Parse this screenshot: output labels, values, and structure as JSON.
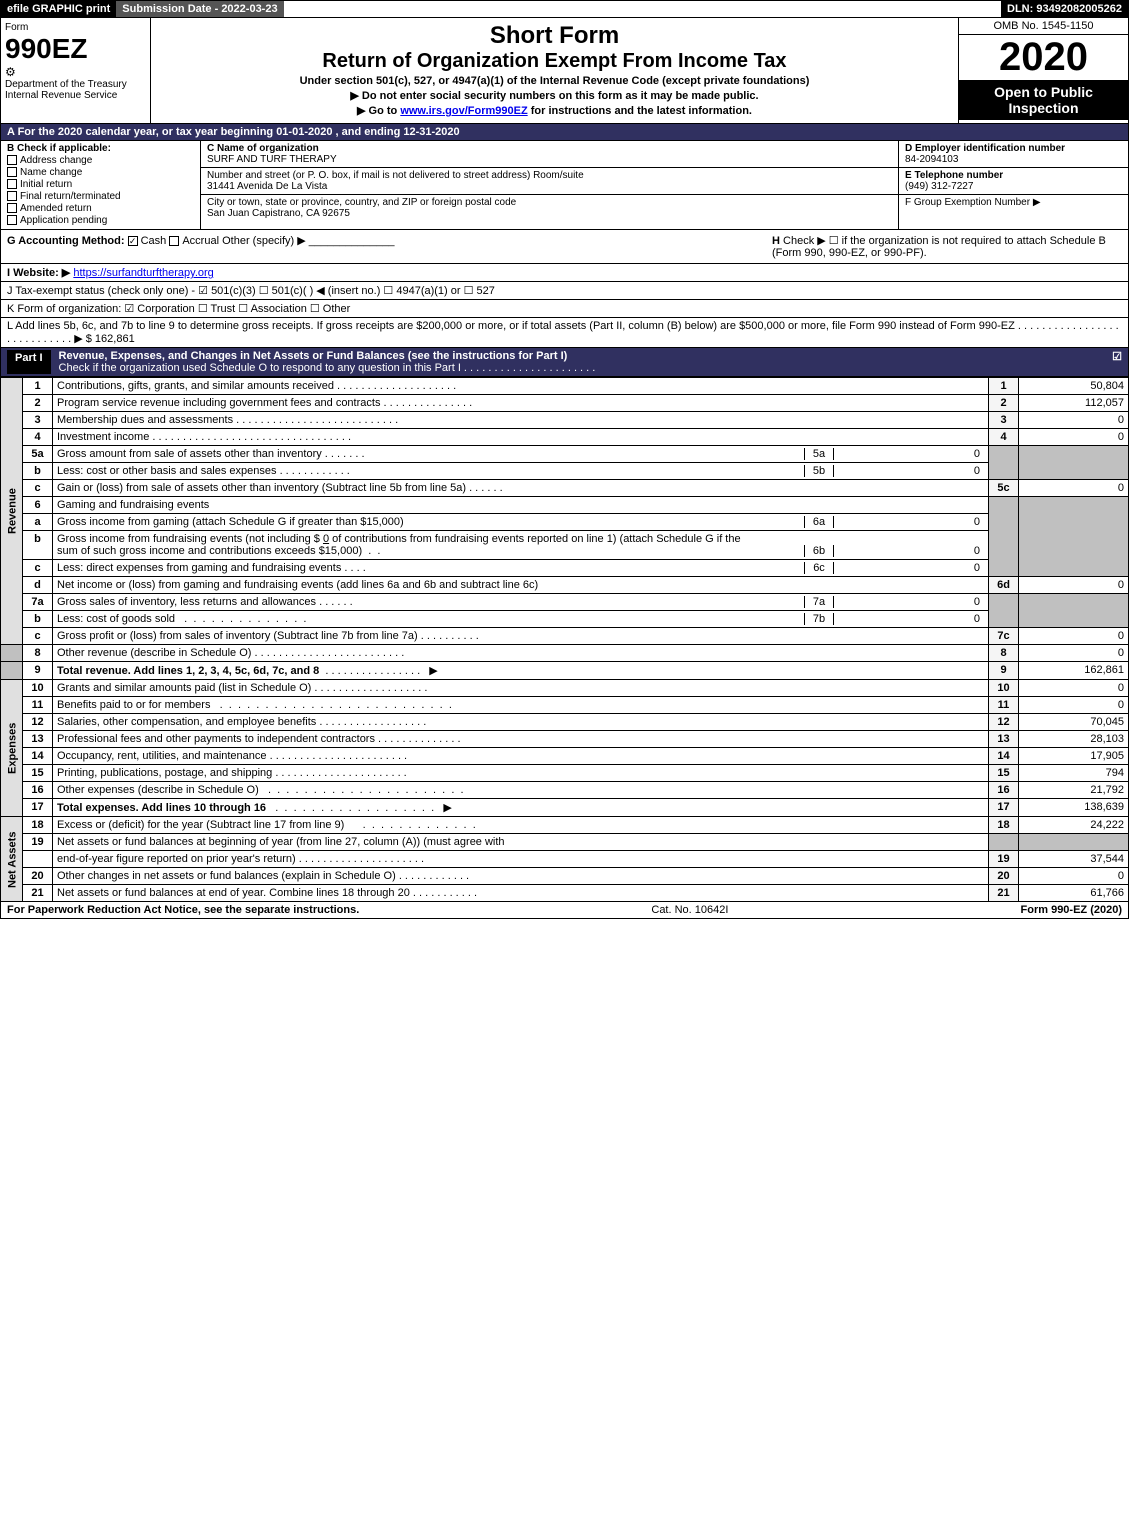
{
  "top": {
    "efile": "efile GRAPHIC print",
    "subdate": "Submission Date - 2022-03-23",
    "dln": "DLN: 93492082005262"
  },
  "header": {
    "form_label": "Form",
    "form_no": "990EZ",
    "irs": "Internal Revenue Service",
    "dept": "Department of the Treasury",
    "title": "Short Form",
    "subtitle": "Return of Organization Exempt From Income Tax",
    "sub1": "Under section 501(c), 527, or 4947(a)(1) of the Internal Revenue Code (except private foundations)",
    "sub2": "▶ Do not enter social security numbers on this form as it may be made public.",
    "sub3_pre": "▶ Go to ",
    "sub3_link": "www.irs.gov/Form990EZ",
    "sub3_post": " for instructions and the latest information.",
    "omb": "OMB No. 1545-1150",
    "year": "2020",
    "open": "Open to Public Inspection"
  },
  "section_a": "A For the 2020 calendar year, or tax year beginning 01-01-2020 , and ending 12-31-2020",
  "col_b": {
    "header": "B Check if applicable:",
    "items": [
      "Address change",
      "Name change",
      "Initial return",
      "Final return/terminated",
      "Amended return",
      "Application pending"
    ]
  },
  "col_c": {
    "name_label": "C Name of organization",
    "name": "SURF AND TURF THERAPY",
    "street_label": "Number and street (or P. O. box, if mail is not delivered to street address)    Room/suite",
    "street": "31441 Avenida De La Vista",
    "city_label": "City or town, state or province, country, and ZIP or foreign postal code",
    "city": "San Juan Capistrano, CA  92675"
  },
  "col_def": {
    "d_label": "D Employer identification number",
    "d_val": "84-2094103",
    "e_label": "E Telephone number",
    "e_val": "(949) 312-7227",
    "f_label": "F Group Exemption Number   ▶"
  },
  "row_g": {
    "label": "G Accounting Method:",
    "cash": "Cash",
    "accrual": "Accrual",
    "other": "Other (specify) ▶"
  },
  "row_h": {
    "label": "H",
    "text": "Check ▶  ☐  if the organization is not required to attach Schedule B (Form 990, 990-EZ, or 990-PF)."
  },
  "row_i": {
    "label": "I Website: ▶",
    "link": "https://surfandturftherapy.org"
  },
  "row_j": "J Tax-exempt status (check only one) - ☑ 501(c)(3) ☐ 501(c)(  ) ◀ (insert no.) ☐ 4947(a)(1) or ☐ 527",
  "row_k": "K Form of organization:  ☑ Corporation  ☐ Trust  ☐ Association  ☐ Other",
  "row_l": "L Add lines 5b, 6c, and 7b to line 9 to determine gross receipts. If gross receipts are $200,000 or more, or if total assets (Part II, column (B) below) are $500,000 or more, file Form 990 instead of Form 990-EZ . . . . . . . . . . . . . . . . . . . . . . . . . . . . ▶ $ 162,861",
  "part1": {
    "label": "Part I",
    "title": "Revenue, Expenses, and Changes in Net Assets or Fund Balances (see the instructions for Part I)",
    "sub": "Check if the organization used Schedule O to respond to any question in this Part I . . . . . . . . . . . . . . . . . . . . . .",
    "check": "☑"
  },
  "sides": {
    "rev": "Revenue",
    "exp": "Expenses",
    "na": "Net Assets"
  },
  "lines": {
    "l1": {
      "no": "1",
      "desc": "Contributions, gifts, grants, and similar amounts received",
      "box": "1",
      "amt": "50,804"
    },
    "l2": {
      "no": "2",
      "desc": "Program service revenue including government fees and contracts",
      "box": "2",
      "amt": "112,057"
    },
    "l3": {
      "no": "3",
      "desc": "Membership dues and assessments",
      "box": "3",
      "amt": "0"
    },
    "l4": {
      "no": "4",
      "desc": "Investment income",
      "box": "4",
      "amt": "0"
    },
    "l5a": {
      "no": "5a",
      "desc": "Gross amount from sale of assets other than inventory",
      "sl": "5a",
      "sv": "0"
    },
    "l5b": {
      "no": "b",
      "desc": "Less: cost or other basis and sales expenses",
      "sl": "5b",
      "sv": "0"
    },
    "l5c": {
      "no": "c",
      "desc": "Gain or (loss) from sale of assets other than inventory (Subtract line 5b from line 5a)",
      "box": "5c",
      "amt": "0"
    },
    "l6": {
      "no": "6",
      "desc": "Gaming and fundraising events"
    },
    "l6a": {
      "no": "a",
      "desc": "Gross income from gaming (attach Schedule G if greater than $15,000)",
      "sl": "6a",
      "sv": "0"
    },
    "l6b": {
      "no": "b",
      "desc1": "Gross income from fundraising events (not including $ ",
      "desc1v": "0",
      "desc1b": " of contributions from fundraising events reported on line 1) (attach Schedule G if the",
      "desc2": "sum of such gross income and contributions exceeds $15,000)",
      "sl": "6b",
      "sv": "0"
    },
    "l6c": {
      "no": "c",
      "desc": "Less: direct expenses from gaming and fundraising events",
      "sl": "6c",
      "sv": "0"
    },
    "l6d": {
      "no": "d",
      "desc": "Net income or (loss) from gaming and fundraising events (add lines 6a and 6b and subtract line 6c)",
      "box": "6d",
      "amt": "0"
    },
    "l7a": {
      "no": "7a",
      "desc": "Gross sales of inventory, less returns and allowances",
      "sl": "7a",
      "sv": "0"
    },
    "l7b": {
      "no": "b",
      "desc": "Less: cost of goods sold",
      "sl": "7b",
      "sv": "0"
    },
    "l7c": {
      "no": "c",
      "desc": "Gross profit or (loss) from sales of inventory (Subtract line 7b from line 7a)",
      "box": "7c",
      "amt": "0"
    },
    "l8": {
      "no": "8",
      "desc": "Other revenue (describe in Schedule O)",
      "box": "8",
      "amt": "0"
    },
    "l9": {
      "no": "9",
      "desc": "Total revenue. Add lines 1, 2, 3, 4, 5c, 6d, 7c, and 8",
      "arrow": "▶",
      "box": "9",
      "amt": "162,861"
    },
    "l10": {
      "no": "10",
      "desc": "Grants and similar amounts paid (list in Schedule O)",
      "box": "10",
      "amt": "0"
    },
    "l11": {
      "no": "11",
      "desc": "Benefits paid to or for members",
      "box": "11",
      "amt": "0"
    },
    "l12": {
      "no": "12",
      "desc": "Salaries, other compensation, and employee benefits",
      "box": "12",
      "amt": "70,045"
    },
    "l13": {
      "no": "13",
      "desc": "Professional fees and other payments to independent contractors",
      "box": "13",
      "amt": "28,103"
    },
    "l14": {
      "no": "14",
      "desc": "Occupancy, rent, utilities, and maintenance",
      "box": "14",
      "amt": "17,905"
    },
    "l15": {
      "no": "15",
      "desc": "Printing, publications, postage, and shipping",
      "box": "15",
      "amt": "794"
    },
    "l16": {
      "no": "16",
      "desc": "Other expenses (describe in Schedule O)",
      "box": "16",
      "amt": "21,792"
    },
    "l17": {
      "no": "17",
      "desc": "Total expenses. Add lines 10 through 16",
      "arrow": "▶",
      "box": "17",
      "amt": "138,639"
    },
    "l18": {
      "no": "18",
      "desc": "Excess or (deficit) for the year (Subtract line 17 from line 9)",
      "box": "18",
      "amt": "24,222"
    },
    "l19": {
      "no": "19",
      "desc": "Net assets or fund balances at beginning of year (from line 27, column (A)) (must agree with",
      "desc2": "end-of-year figure reported on prior year's return)",
      "box": "19",
      "amt": "37,544"
    },
    "l20": {
      "no": "20",
      "desc": "Other changes in net assets or fund balances (explain in Schedule O)",
      "box": "20",
      "amt": "0"
    },
    "l21": {
      "no": "21",
      "desc": "Net assets or fund balances at end of year. Combine lines 18 through 20",
      "box": "21",
      "amt": "61,766"
    }
  },
  "footer": {
    "left": "For Paperwork Reduction Act Notice, see the separate instructions.",
    "mid": "Cat. No. 10642I",
    "right": "Form 990-EZ (2020)"
  }
}
